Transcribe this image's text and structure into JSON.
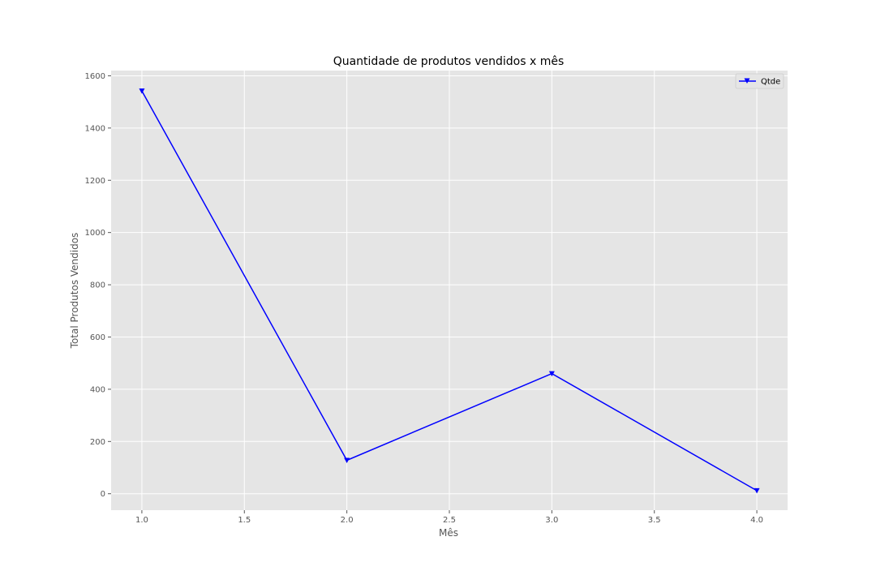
{
  "chart_data": {
    "type": "line",
    "title": "Quantidade de produtos vendidos x mês",
    "xlabel": "Mês",
    "ylabel": "Total Produtos Vendidos",
    "x": [
      1.0,
      2.0,
      3.0,
      4.0
    ],
    "series": [
      {
        "name": "Qtde",
        "values": [
          1542,
          128,
          460,
          12
        ],
        "color": "#0000ff",
        "marker": "triangle-down"
      }
    ],
    "xlim": [
      0.85,
      4.15
    ],
    "ylim": [
      -63,
      1620
    ],
    "xticks": [
      1.0,
      1.5,
      2.0,
      2.5,
      3.0,
      3.5,
      4.0
    ],
    "xtick_labels": [
      "1.0",
      "1.5",
      "2.0",
      "2.5",
      "3.0",
      "3.5",
      "4.0"
    ],
    "yticks": [
      0,
      200,
      400,
      600,
      800,
      1000,
      1200,
      1400,
      1600
    ],
    "ytick_labels": [
      "0",
      "200",
      "400",
      "600",
      "800",
      "1000",
      "1200",
      "1400",
      "1600"
    ],
    "grid": true,
    "legend_position": "top-right",
    "colors": {
      "plot_background": "#e5e5e5",
      "grid": "#ffffff",
      "line": "#0000ff"
    }
  }
}
